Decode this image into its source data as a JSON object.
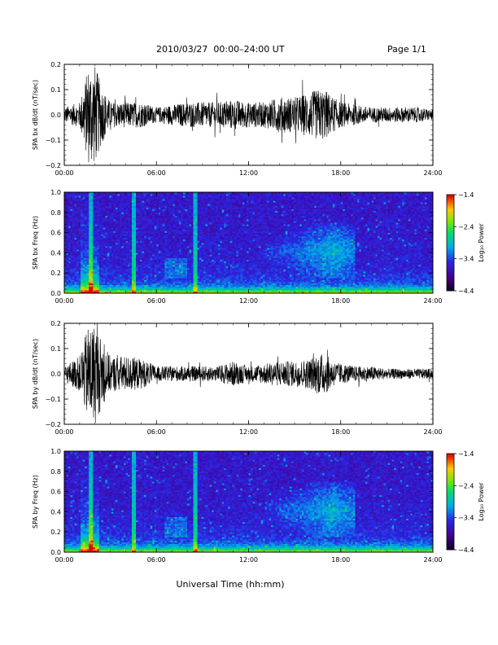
{
  "header": {
    "title": "2010/03/27  00:00–24:00 UT",
    "page": "Page 1/1"
  },
  "xaxis_label": "Universal Time (hh:mm)",
  "chart_data": [
    {
      "type": "line",
      "ylabel": "SPA bx dB/dt (nT/sec)",
      "ylim": [
        -0.2,
        0.2
      ],
      "yticks": [
        "0.2",
        "0.1",
        "0.0",
        "−0.1",
        "−0.2"
      ],
      "xlim": [
        0,
        24
      ],
      "xticks": [
        "00:00",
        "06:00",
        "12:00",
        "18:00",
        "24:00"
      ],
      "description_points": {
        "x_hours": [
          0,
          1,
          1.6,
          2,
          2.4,
          3,
          4,
          5,
          6,
          7,
          8,
          9,
          10,
          11,
          12,
          13,
          14,
          15,
          16,
          16.5,
          17,
          17.5,
          18,
          19,
          20,
          21,
          22,
          23,
          24
        ],
        "envelope": [
          0.03,
          0.05,
          0.2,
          0.2,
          0.12,
          0.05,
          0.05,
          0.05,
          0.03,
          0.04,
          0.05,
          0.05,
          0.05,
          0.06,
          0.05,
          0.05,
          0.07,
          0.07,
          0.09,
          0.1,
          0.1,
          0.07,
          0.05,
          0.04,
          0.03,
          0.03,
          0.03,
          0.03,
          0.02
        ]
      },
      "grid": false
    },
    {
      "type": "heatmap",
      "ylabel": "SPA bx Freq (Hz)",
      "ylim": [
        0,
        1.0
      ],
      "yticks": [
        "1.0",
        "0.8",
        "0.6",
        "0.4",
        "0.2",
        "0.0"
      ],
      "xlim": [
        0,
        24
      ],
      "xticks": [
        "00:00",
        "06:00",
        "12:00",
        "18:00",
        "24:00"
      ],
      "colorbar": {
        "label": "Log₁₀ Power",
        "range": [
          -4.4,
          -1.4
        ],
        "ticks": [
          "−1.4",
          "−2.4",
          "−3.4",
          "−4.4"
        ]
      },
      "vertical_bursts_hours": [
        1.7,
        4.5,
        8.5
      ],
      "broadband_patch": {
        "x_hours": [
          13,
          19
        ],
        "freq_hz": [
          0.25,
          0.6
        ]
      }
    },
    {
      "type": "line",
      "ylabel": "SPA by dB/dt (nT/sec)",
      "ylim": [
        -0.2,
        0.2
      ],
      "yticks": [
        "0.2",
        "0.1",
        "0.0",
        "−0.1",
        "−0.2"
      ],
      "xlim": [
        0,
        24
      ],
      "xticks": [
        "00:00",
        "06:00",
        "12:00",
        "18:00",
        "24:00"
      ],
      "description_points": {
        "x_hours": [
          0,
          1,
          1.6,
          2,
          2.4,
          3,
          4,
          5,
          6,
          7,
          8,
          9,
          10,
          11,
          12,
          13,
          14,
          15,
          16,
          16.5,
          17,
          17.5,
          18,
          19,
          20,
          21,
          22,
          23,
          24
        ],
        "envelope": [
          0.03,
          0.07,
          0.2,
          0.2,
          0.14,
          0.07,
          0.07,
          0.06,
          0.03,
          0.03,
          0.03,
          0.03,
          0.03,
          0.05,
          0.03,
          0.04,
          0.05,
          0.05,
          0.06,
          0.08,
          0.08,
          0.05,
          0.04,
          0.03,
          0.03,
          0.02,
          0.02,
          0.02,
          0.02
        ]
      },
      "grid": false
    },
    {
      "type": "heatmap",
      "ylabel": "SPA by Freq (Hz)",
      "ylim": [
        0,
        1.0
      ],
      "yticks": [
        "1.0",
        "0.8",
        "0.6",
        "0.4",
        "0.2",
        "0.0"
      ],
      "xlim": [
        0,
        24
      ],
      "xticks": [
        "00:00",
        "06:00",
        "12:00",
        "18:00",
        "24:00"
      ],
      "colorbar": {
        "label": "Log₁₀ Power",
        "range": [
          -4.4,
          -1.4
        ],
        "ticks": [
          "−1.4",
          "−2.4",
          "−3.4",
          "−4.4"
        ]
      },
      "vertical_bursts_hours": [
        1.7,
        4.5,
        8.5
      ],
      "broadband_patch": {
        "x_hours": [
          13,
          19
        ],
        "freq_hz": [
          0.25,
          0.6
        ]
      }
    }
  ],
  "colors": {
    "trace": "#000000",
    "frame": "#000000"
  }
}
